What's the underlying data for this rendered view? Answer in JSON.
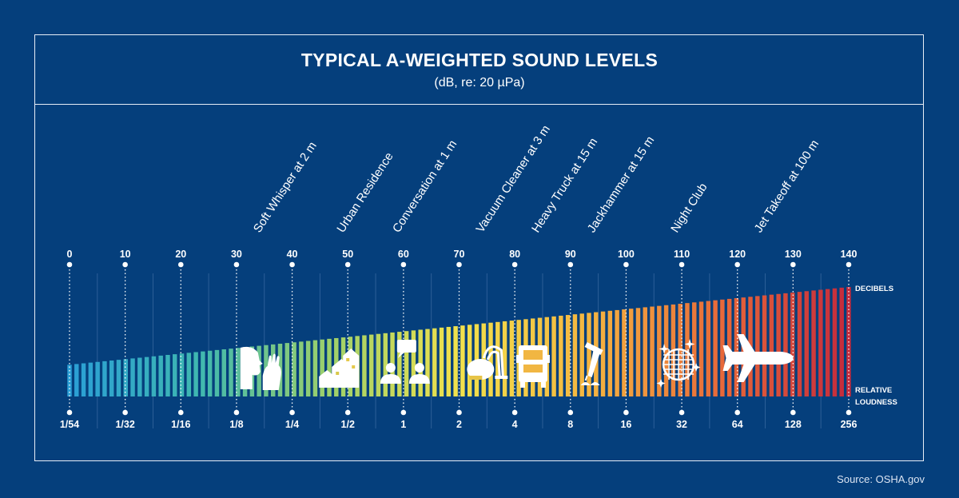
{
  "title": "TYPICAL A-WEIGHTED SOUND LEVELS",
  "subtitle": "(dB, re: 20 µPa)",
  "source": "Source: OSHA.gov",
  "colors": {
    "background": "#053f7c",
    "gradient": [
      "#2a9fd6",
      "#3fb8b0",
      "#9dd06a",
      "#f2e24c",
      "#f5b540",
      "#e86a3a",
      "#c42a3c"
    ]
  },
  "chart_data": {
    "type": "bar",
    "title": "TYPICAL A-WEIGHTED SOUND LEVELS",
    "subtitle": "(dB, re: 20 µPa)",
    "x_axis": {
      "label": "DECIBELS",
      "range": [
        0,
        140
      ],
      "ticks": [
        "0",
        "10",
        "20",
        "30",
        "40",
        "50",
        "60",
        "70",
        "80",
        "90",
        "100",
        "110",
        "120",
        "130",
        "140"
      ]
    },
    "secondary_axis": {
      "label_line1": "RELATIVE",
      "label_line2": "LOUDNESS",
      "ticks": [
        "1/54",
        "1/32",
        "1/16",
        "1/8",
        "1/4",
        "1/2",
        "1",
        "2",
        "4",
        "8",
        "16",
        "32",
        "64",
        "128",
        "256"
      ]
    },
    "bars": {
      "count": 112,
      "db_start": 0,
      "db_end": 140,
      "relative_height_start": 0.29,
      "relative_height_end": 1.0
    },
    "annotations": [
      {
        "label": "Soft Whisper at 2 m",
        "db": 35,
        "icon": "whisper-icon"
      },
      {
        "label": "Urban Residence",
        "db": 50,
        "icon": "houses-icon"
      },
      {
        "label": "Conversation at 1 m",
        "db": 60,
        "icon": "conversation-icon"
      },
      {
        "label": "Vacuum Cleaner at 3 m",
        "db": 75,
        "icon": "vacuum-icon"
      },
      {
        "label": "Heavy Truck at 15 m",
        "db": 85,
        "icon": "truck-icon"
      },
      {
        "label": "Jackhammer at 15 m",
        "db": 95,
        "icon": "jackhammer-icon"
      },
      {
        "label": "Night Club",
        "db": 110,
        "icon": "disco-ball-icon"
      },
      {
        "label": "Jet Takeoff at 100 m",
        "db": 125,
        "icon": "airplane-icon"
      }
    ]
  }
}
